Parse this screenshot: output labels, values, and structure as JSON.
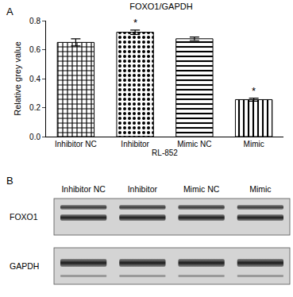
{
  "chart_data": {
    "type": "bar",
    "panel": "A",
    "title": "FOXO1/GAPDH",
    "x_label": "RL-852",
    "y_label": "Relative grey value",
    "categories": [
      "Inhibitor NC",
      "Inhibitor",
      "Mimic NC",
      "Mimic"
    ],
    "values": [
      0.65,
      0.72,
      0.675,
      0.255
    ],
    "errors": [
      0.025,
      0.015,
      0.012,
      0.01
    ],
    "color": "#000000",
    "ylim": [
      0,
      0.8
    ],
    "yticks": [
      {
        "value": 0,
        "label": "0.0"
      },
      0.2,
      0.4,
      0.6,
      0.8
    ],
    "grid": false,
    "annotations": [
      {
        "category": "Inhibitor",
        "text": "*"
      },
      {
        "category": "Mimic",
        "text": "*"
      }
    ]
  },
  "blot": {
    "panel": "B",
    "lanes": [
      "Inhibitor NC",
      "Inhibitor",
      "Mimic NC",
      "Mimic"
    ],
    "rows": [
      "FOXO1",
      "GAPDH"
    ]
  }
}
